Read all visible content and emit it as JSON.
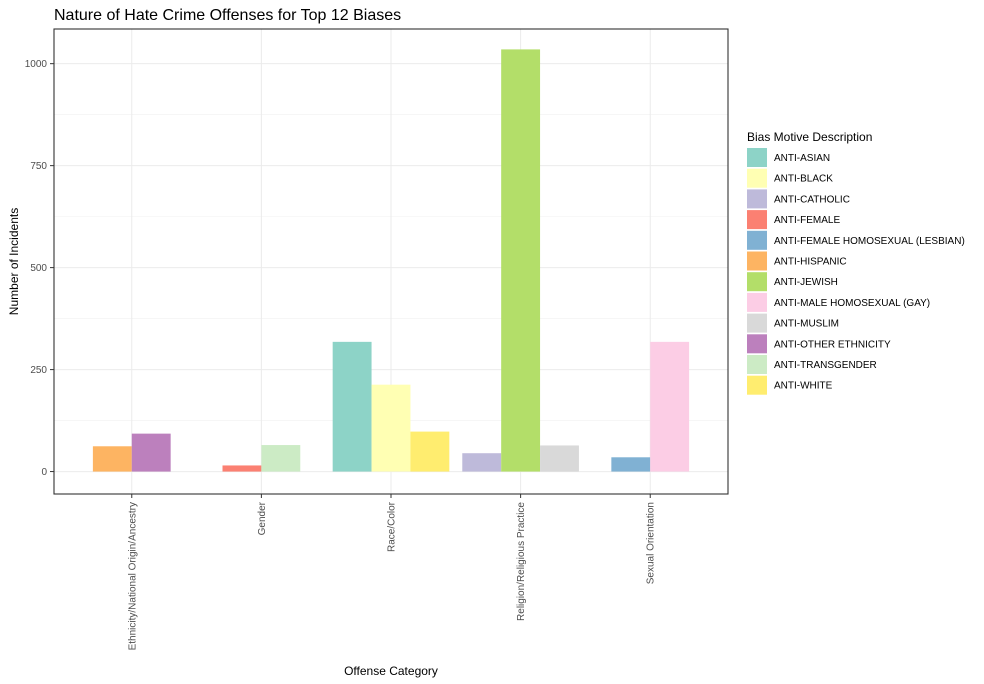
{
  "chart_data": {
    "type": "bar",
    "title": "Nature of Hate Crime Offenses for Top 12 Biases",
    "xlabel": "Offense Category",
    "ylabel": "Number of Incidents",
    "ylim": [
      -55,
      1085
    ],
    "yticks": [
      0,
      250,
      500,
      750,
      1000
    ],
    "grid": true,
    "legend_position": "right",
    "legend_title": "Bias Motive Description",
    "categories": [
      "Ethnicity/National Origin/Ancestry",
      "Gender",
      "Race/Color",
      "Religion/Religious Practice",
      "Sexual Orientation"
    ],
    "series": [
      {
        "name": "ANTI-ASIAN",
        "color": "#8DD3C7"
      },
      {
        "name": "ANTI-BLACK",
        "color": "#FFFFB3"
      },
      {
        "name": "ANTI-CATHOLIC",
        "color": "#BEBADA"
      },
      {
        "name": "ANTI-FEMALE",
        "color": "#FB8072"
      },
      {
        "name": "ANTI-FEMALE HOMOSEXUAL (LESBIAN)",
        "color": "#80B1D3"
      },
      {
        "name": "ANTI-HISPANIC",
        "color": "#FDB462"
      },
      {
        "name": "ANTI-JEWISH",
        "color": "#B3DE69"
      },
      {
        "name": "ANTI-MALE HOMOSEXUAL (GAY)",
        "color": "#FCCDE5"
      },
      {
        "name": "ANTI-MUSLIM",
        "color": "#D9D9D9"
      },
      {
        "name": "ANTI-OTHER ETHNICITY",
        "color": "#BC80BD"
      },
      {
        "name": "ANTI-TRANSGENDER",
        "color": "#CCEBC5"
      },
      {
        "name": "ANTI-WHITE",
        "color": "#FFED6F"
      }
    ],
    "groups": [
      {
        "category": "Ethnicity/National Origin/Ancestry",
        "bars": [
          {
            "series": "ANTI-HISPANIC",
            "value": 62
          },
          {
            "series": "ANTI-OTHER ETHNICITY",
            "value": 93
          }
        ]
      },
      {
        "category": "Gender",
        "bars": [
          {
            "series": "ANTI-FEMALE",
            "value": 15
          },
          {
            "series": "ANTI-TRANSGENDER",
            "value": 65
          }
        ]
      },
      {
        "category": "Race/Color",
        "bars": [
          {
            "series": "ANTI-ASIAN",
            "value": 318
          },
          {
            "series": "ANTI-BLACK",
            "value": 213
          },
          {
            "series": "ANTI-WHITE",
            "value": 98
          }
        ]
      },
      {
        "category": "Religion/Religious Practice",
        "bars": [
          {
            "series": "ANTI-CATHOLIC",
            "value": 45
          },
          {
            "series": "ANTI-JEWISH",
            "value": 1035
          },
          {
            "series": "ANTI-MUSLIM",
            "value": 64
          }
        ]
      },
      {
        "category": "Sexual Orientation",
        "bars": [
          {
            "series": "ANTI-FEMALE HOMOSEXUAL (LESBIAN)",
            "value": 35
          },
          {
            "series": "ANTI-MALE HOMOSEXUAL (GAY)",
            "value": 318
          }
        ]
      }
    ]
  }
}
